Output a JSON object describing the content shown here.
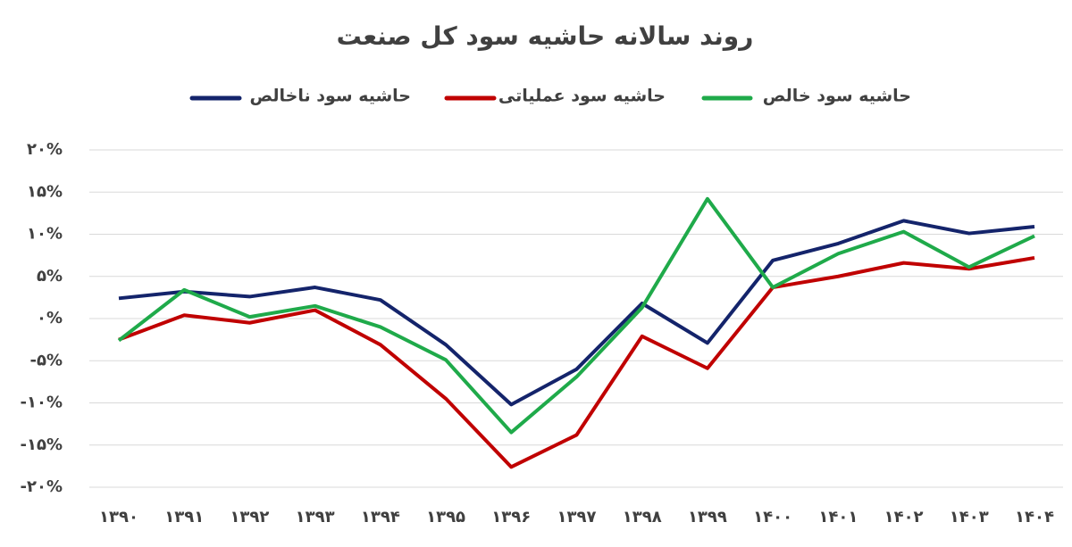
{
  "chart_data": {
    "type": "line",
    "title": "روند سالانه حاشیه سود کل صنعت",
    "categories": [
      "۱۳۹۰",
      "۱۳۹۱",
      "۱۳۹۲",
      "۱۳۹۳",
      "۱۳۹۴",
      "۱۳۹۵",
      "۱۳۹۶",
      "۱۳۹۷",
      "۱۳۹۸",
      "۱۳۹۹",
      "۱۴۰۰",
      "۱۴۰۱",
      "۱۴۰۲",
      "۱۴۰۳",
      "۱۴۰۴"
    ],
    "series": [
      {
        "name": "حاشیه سود ناخالص",
        "color": "#14246b",
        "values": [
          2.4,
          3.2,
          2.6,
          3.7,
          2.2,
          -3.1,
          -10.2,
          -6.0,
          1.8,
          -2.9,
          6.9,
          8.9,
          11.6,
          10.1,
          10.9
        ]
      },
      {
        "name": "حاشیه سود عملیاتی",
        "color": "#c00000",
        "values": [
          -2.5,
          0.4,
          -0.5,
          1.0,
          -3.1,
          -9.5,
          -17.6,
          -13.8,
          -2.1,
          -5.9,
          3.7,
          5.0,
          6.6,
          5.9,
          7.2
        ]
      },
      {
        "name": "حاشیه سود خالص",
        "color": "#1faa4a",
        "values": [
          -2.6,
          3.4,
          0.2,
          1.5,
          -1.0,
          -4.9,
          -13.5,
          -6.9,
          1.3,
          14.2,
          3.7,
          7.7,
          10.3,
          6.1,
          9.8
        ]
      }
    ],
    "ylim": [
      -20,
      20
    ],
    "yticks": [
      {
        "value": -20,
        "label": "-۲۰%"
      },
      {
        "value": -15,
        "label": "-۱۵%"
      },
      {
        "value": -10,
        "label": "-۱۰%"
      },
      {
        "value": -5,
        "label": "-۵%"
      },
      {
        "value": 0,
        "label": "۰%"
      },
      {
        "value": 5,
        "label": "۵%"
      },
      {
        "value": 10,
        "label": "۱۰%"
      },
      {
        "value": 15,
        "label": "۱۵%"
      },
      {
        "value": 20,
        "label": "۲۰%"
      }
    ],
    "grid": true
  }
}
